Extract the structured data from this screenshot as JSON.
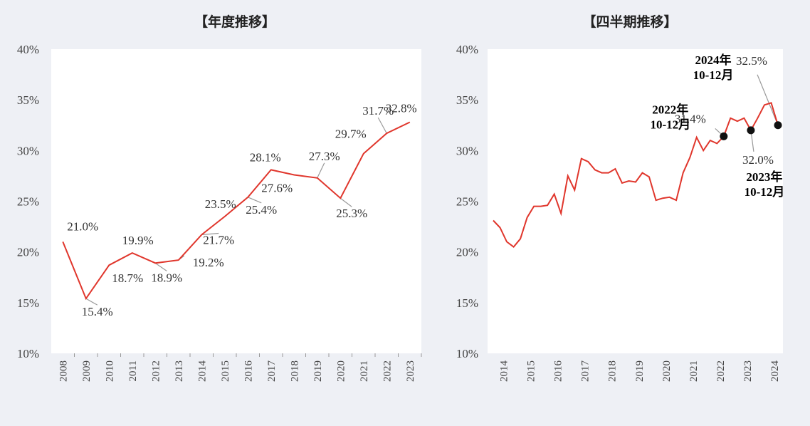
{
  "chart_data": [
    {
      "type": "line",
      "title": "【年度推移】",
      "xlabel": "",
      "ylabel": "",
      "ylim": [
        10,
        40
      ],
      "y_ticks": [
        10,
        15,
        20,
        25,
        30,
        35,
        40
      ],
      "y_tick_labels": [
        "10%",
        "15%",
        "20%",
        "25%",
        "30%",
        "35%",
        "40%"
      ],
      "categories": [
        "2008",
        "2009",
        "2010",
        "2011",
        "2012",
        "2013",
        "2014",
        "2015",
        "2016",
        "2017",
        "2018",
        "2019",
        "2020",
        "2021",
        "2022",
        "2023"
      ],
      "series": [
        {
          "name": "年度",
          "color": "#e0362c",
          "values": [
            21.0,
            15.4,
            18.7,
            19.9,
            18.9,
            19.2,
            21.7,
            23.5,
            25.4,
            28.1,
            27.6,
            27.3,
            25.3,
            29.7,
            31.7,
            32.8
          ]
        }
      ],
      "data_labels": [
        {
          "index": 0,
          "text": "21.0%"
        },
        {
          "index": 1,
          "text": "15.4%"
        },
        {
          "index": 2,
          "text": "18.7%"
        },
        {
          "index": 3,
          "text": "19.9%"
        },
        {
          "index": 4,
          "text": "18.9%"
        },
        {
          "index": 5,
          "text": "19.2%"
        },
        {
          "index": 6,
          "text": "21.7%"
        },
        {
          "index": 7,
          "text": "23.5%"
        },
        {
          "index": 8,
          "text": "25.4%"
        },
        {
          "index": 9,
          "text": "28.1%"
        },
        {
          "index": 10,
          "text": "27.6%"
        },
        {
          "index": 11,
          "text": "27.3%"
        },
        {
          "index": 12,
          "text": "25.3%"
        },
        {
          "index": 13,
          "text": "29.7%"
        },
        {
          "index": 14,
          "text": "31.7%"
        },
        {
          "index": 15,
          "text": "32.8%"
        }
      ],
      "grid": false
    },
    {
      "type": "line",
      "title": "【四半期推移】",
      "xlabel": "",
      "ylabel": "",
      "ylim": [
        10,
        40
      ],
      "y_ticks": [
        10,
        15,
        20,
        25,
        30,
        35,
        40
      ],
      "y_tick_labels": [
        "10%",
        "15%",
        "20%",
        "25%",
        "30%",
        "35%",
        "40%"
      ],
      "year_ticks": [
        "2014",
        "2015",
        "2016",
        "2017",
        "2018",
        "2019",
        "2020",
        "2021",
        "2022",
        "2023",
        "2024"
      ],
      "series": [
        {
          "name": "四半期",
          "color": "#e0362c",
          "values": [
            23.1,
            22.4,
            21.0,
            20.5,
            21.3,
            23.4,
            24.5,
            24.5,
            24.6,
            25.7,
            23.8,
            27.5,
            26.1,
            29.2,
            28.9,
            28.1,
            27.8,
            27.8,
            28.2,
            26.8,
            27.0,
            26.9,
            27.8,
            27.4,
            25.1,
            25.3,
            25.4,
            25.1,
            27.8,
            29.3,
            31.3,
            30.0,
            31.0,
            30.7,
            31.4,
            33.2,
            32.9,
            33.2,
            32.0,
            33.2,
            34.5,
            34.7,
            32.5
          ]
        }
      ],
      "highlights": [
        {
          "index": 34,
          "label_date": [
            "2022年",
            "10-12月"
          ],
          "label_value": "31.4%"
        },
        {
          "index": 38,
          "label_date": [
            "2023年",
            "10-12月"
          ],
          "label_value": "32.0%"
        },
        {
          "index": 42,
          "label_date": [
            "2024年",
            "10-12月"
          ],
          "label_value": "32.5%"
        }
      ],
      "grid": false
    }
  ]
}
